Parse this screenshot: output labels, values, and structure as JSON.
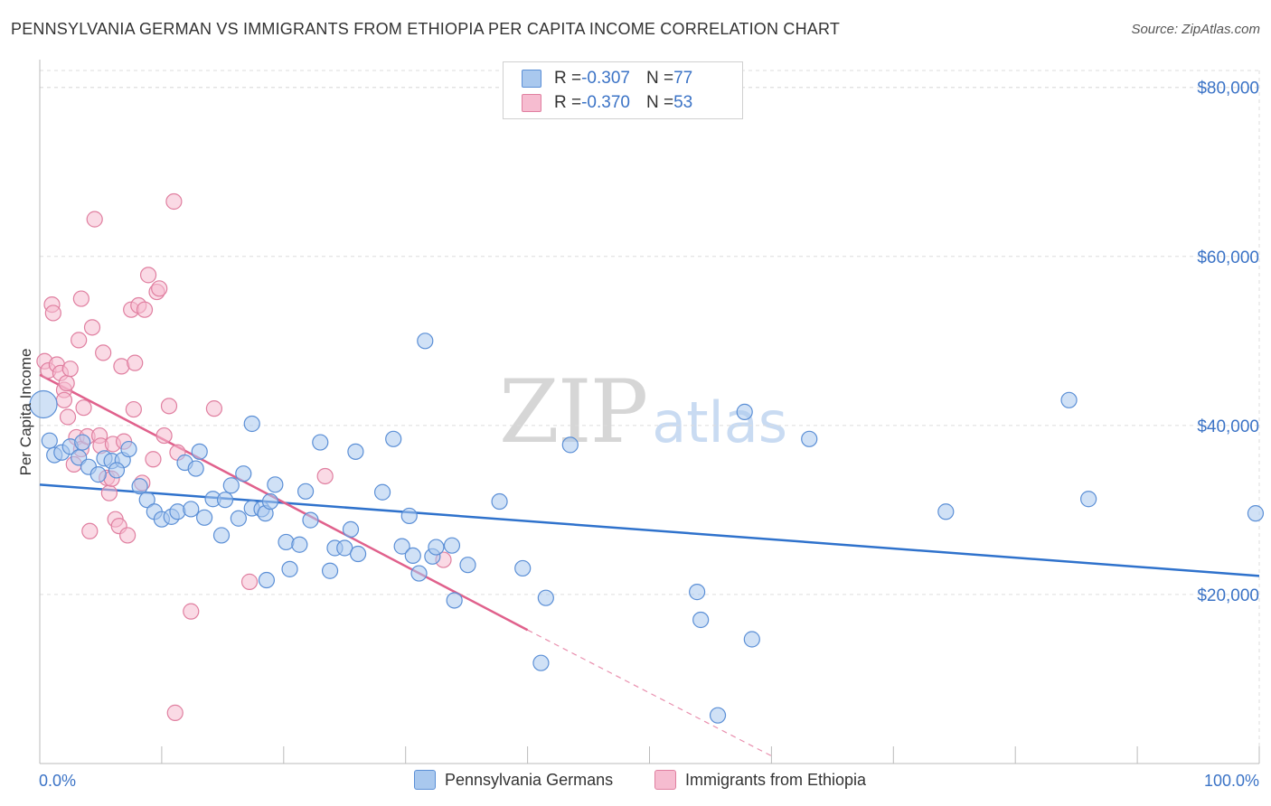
{
  "header": {
    "title": "PENNSYLVANIA GERMAN VS IMMIGRANTS FROM ETHIOPIA PER CAPITA INCOME CORRELATION CHART",
    "source": "Source: ZipAtlas.com"
  },
  "watermark": {
    "zip": "ZIP",
    "atlas": "atlas"
  },
  "legend": {
    "series1": {
      "r_label": "R = ",
      "r_value": "-0.307",
      "n_label": "N = ",
      "n_value": "77"
    },
    "series2": {
      "r_label": "R = ",
      "r_value": "-0.370",
      "n_label": "N = ",
      "n_value": "53"
    }
  },
  "colors": {
    "blue_fill": "#a9c8ee",
    "blue_stroke": "#5b8fd6",
    "blue_line": "#2f72cc",
    "pink_fill": "#f6bcd0",
    "pink_stroke": "#e07fa0",
    "pink_line": "#e0618c",
    "grid": "#dddddd",
    "axis_text": "#3b73c6"
  },
  "chart_data": {
    "type": "scatter",
    "title": "PENNSYLVANIA GERMAN VS IMMIGRANTS FROM ETHIOPIA PER CAPITA INCOME CORRELATION CHART",
    "xlabel": "",
    "ylabel": "Per Capita Income",
    "xlim": [
      0,
      100
    ],
    "ylim": [
      0,
      82000
    ],
    "x_tick_labels": [
      "0.0%",
      "100.0%"
    ],
    "y_ticks": [
      20000,
      40000,
      60000,
      80000
    ],
    "y_tick_labels": [
      "$20,000",
      "$40,000",
      "$60,000",
      "$80,000"
    ],
    "grid": true,
    "legend_position": "bottom",
    "series": [
      {
        "name": "Pennsylvania Germans",
        "color": "#a9c8ee",
        "trend": {
          "x": [
            0,
            100
          ],
          "y": [
            33000,
            22200
          ],
          "dashed_to": null
        },
        "points": [
          [
            0.3,
            42500
          ],
          [
            0.8,
            38200
          ],
          [
            1.2,
            36500
          ],
          [
            1.8,
            36800
          ],
          [
            2.5,
            37500
          ],
          [
            3.2,
            36200
          ],
          [
            4.0,
            35100
          ],
          [
            4.8,
            34200
          ],
          [
            5.3,
            36100
          ],
          [
            5.9,
            35800
          ],
          [
            6.8,
            35900
          ],
          [
            7.3,
            37200
          ],
          [
            8.2,
            32800
          ],
          [
            8.8,
            31200
          ],
          [
            9.4,
            29800
          ],
          [
            10.0,
            28900
          ],
          [
            10.8,
            29200
          ],
          [
            11.3,
            29800
          ],
          [
            11.9,
            35600
          ],
          [
            12.4,
            30100
          ],
          [
            12.8,
            34900
          ],
          [
            13.1,
            36900
          ],
          [
            13.5,
            29100
          ],
          [
            14.2,
            31300
          ],
          [
            14.9,
            27000
          ],
          [
            15.2,
            31200
          ],
          [
            15.7,
            32900
          ],
          [
            16.3,
            29000
          ],
          [
            16.7,
            34300
          ],
          [
            17.4,
            30200
          ],
          [
            17.4,
            40200
          ],
          [
            18.2,
            30100
          ],
          [
            18.5,
            29600
          ],
          [
            18.9,
            31000
          ],
          [
            18.6,
            21700
          ],
          [
            19.3,
            33000
          ],
          [
            20.2,
            26200
          ],
          [
            20.5,
            23000
          ],
          [
            21.3,
            25900
          ],
          [
            21.8,
            32200
          ],
          [
            22.2,
            28800
          ],
          [
            23.0,
            38000
          ],
          [
            23.8,
            22800
          ],
          [
            24.2,
            25500
          ],
          [
            25.0,
            25500
          ],
          [
            25.5,
            27700
          ],
          [
            25.9,
            36900
          ],
          [
            26.1,
            24800
          ],
          [
            28.1,
            32100
          ],
          [
            29.0,
            38400
          ],
          [
            29.7,
            25700
          ],
          [
            30.3,
            29300
          ],
          [
            30.6,
            24600
          ],
          [
            31.1,
            22500
          ],
          [
            31.6,
            50000
          ],
          [
            32.2,
            24500
          ],
          [
            32.5,
            25600
          ],
          [
            33.8,
            25800
          ],
          [
            34.0,
            19300
          ],
          [
            35.1,
            23500
          ],
          [
            37.7,
            31000
          ],
          [
            39.6,
            23100
          ],
          [
            41.1,
            11900
          ],
          [
            41.5,
            19600
          ],
          [
            43.5,
            37700
          ],
          [
            53.9,
            20300
          ],
          [
            54.2,
            17000
          ],
          [
            55.6,
            5700
          ],
          [
            57.8,
            41600
          ],
          [
            58.4,
            14700
          ],
          [
            63.1,
            38400
          ],
          [
            74.3,
            29800
          ],
          [
            84.4,
            43000
          ],
          [
            86.0,
            31300
          ],
          [
            99.7,
            29600
          ],
          [
            3.5,
            38000
          ],
          [
            6.3,
            34700
          ]
        ]
      },
      {
        "name": "Immigrants from Ethiopia",
        "color": "#f6bcd0",
        "trend": {
          "x": [
            0,
            40.0
          ],
          "y": [
            46000,
            15800
          ],
          "dashed_to": [
            60,
            900
          ]
        },
        "points": [
          [
            0.4,
            47600
          ],
          [
            0.7,
            46500
          ],
          [
            1.0,
            54300
          ],
          [
            1.1,
            53300
          ],
          [
            1.4,
            47200
          ],
          [
            1.7,
            46200
          ],
          [
            2.0,
            44200
          ],
          [
            2.0,
            43000
          ],
          [
            2.2,
            45000
          ],
          [
            2.5,
            46700
          ],
          [
            2.8,
            35400
          ],
          [
            3.0,
            38600
          ],
          [
            3.2,
            50100
          ],
          [
            3.4,
            37200
          ],
          [
            3.6,
            42100
          ],
          [
            3.9,
            38700
          ],
          [
            3.4,
            55000
          ],
          [
            4.1,
            27500
          ],
          [
            4.3,
            51600
          ],
          [
            4.5,
            64400
          ],
          [
            4.9,
            38800
          ],
          [
            5.2,
            48600
          ],
          [
            5.0,
            37600
          ],
          [
            5.5,
            33800
          ],
          [
            5.7,
            32000
          ],
          [
            6.0,
            37800
          ],
          [
            6.2,
            28900
          ],
          [
            6.5,
            28100
          ],
          [
            6.7,
            47000
          ],
          [
            6.9,
            38100
          ],
          [
            7.2,
            27000
          ],
          [
            7.5,
            53700
          ],
          [
            7.7,
            41900
          ],
          [
            7.8,
            47400
          ],
          [
            8.1,
            54200
          ],
          [
            8.4,
            33200
          ],
          [
            8.6,
            53700
          ],
          [
            8.9,
            57800
          ],
          [
            9.3,
            36000
          ],
          [
            9.6,
            55800
          ],
          [
            9.8,
            56200
          ],
          [
            10.2,
            38800
          ],
          [
            10.6,
            42300
          ],
          [
            11.0,
            66500
          ],
          [
            11.3,
            36800
          ],
          [
            12.4,
            18000
          ],
          [
            11.1,
            6000
          ],
          [
            14.3,
            42000
          ],
          [
            17.2,
            21500
          ],
          [
            23.4,
            34000
          ],
          [
            33.1,
            24100
          ],
          [
            5.9,
            33700
          ],
          [
            2.3,
            41000
          ]
        ]
      }
    ]
  },
  "bottom_legend": {
    "item1": "Pennsylvania Germans",
    "item2": "Immigrants from Ethiopia"
  }
}
